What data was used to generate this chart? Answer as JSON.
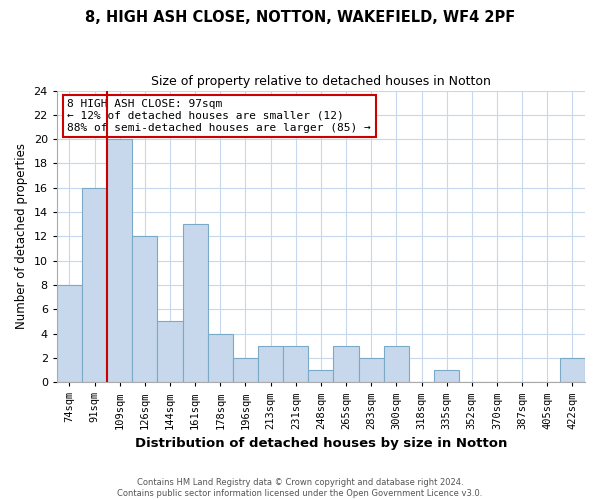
{
  "title": "8, HIGH ASH CLOSE, NOTTON, WAKEFIELD, WF4 2PF",
  "subtitle": "Size of property relative to detached houses in Notton",
  "xlabel": "Distribution of detached houses by size in Notton",
  "ylabel": "Number of detached properties",
  "bar_labels": [
    "74sqm",
    "91sqm",
    "109sqm",
    "126sqm",
    "144sqm",
    "161sqm",
    "178sqm",
    "196sqm",
    "213sqm",
    "231sqm",
    "248sqm",
    "265sqm",
    "283sqm",
    "300sqm",
    "318sqm",
    "335sqm",
    "352sqm",
    "370sqm",
    "387sqm",
    "405sqm",
    "422sqm"
  ],
  "bar_values": [
    8,
    16,
    20,
    12,
    5,
    13,
    4,
    2,
    3,
    3,
    1,
    3,
    2,
    3,
    0,
    1,
    0,
    0,
    0,
    0,
    2
  ],
  "bar_color": "#c8d8ec",
  "bar_edge_color": "#7aaac8",
  "highlight_line_color": "#cc0000",
  "ylim": [
    0,
    24
  ],
  "yticks": [
    0,
    2,
    4,
    6,
    8,
    10,
    12,
    14,
    16,
    18,
    20,
    22,
    24
  ],
  "annotation_line1": "8 HIGH ASH CLOSE: 97sqm",
  "annotation_line2": "← 12% of detached houses are smaller (12)",
  "annotation_line3": "88% of semi-detached houses are larger (85) →",
  "annotation_box_color": "#ffffff",
  "annotation_box_edge_color": "#cc0000",
  "footer_line1": "Contains HM Land Registry data © Crown copyright and database right 2024.",
  "footer_line2": "Contains public sector information licensed under the Open Government Licence v3.0.",
  "background_color": "#ffffff",
  "grid_color": "#c8d8ec"
}
